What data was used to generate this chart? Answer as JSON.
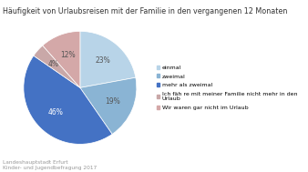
{
  "title": "Häufigkeit von Urlaubsreisen mit der Familie in den vergangenen 12 Monaten",
  "slices": [
    23,
    19,
    46,
    4,
    12
  ],
  "colors": [
    "#b8d4e8",
    "#8ab4d4",
    "#4472c4",
    "#c9a8a8",
    "#d4a8a8"
  ],
  "slice_labels": [
    "23%",
    "19%",
    "46%",
    "4%",
    "12%"
  ],
  "legend_labels": [
    "einmal",
    "zweimal",
    "mehr als zweimal",
    "Ich fäh re mit meiner Familie nicht mehr in den\nUrlaub",
    "Wir waren gar nicht im Urlaub"
  ],
  "label_colors": [
    "#555555",
    "#555555",
    "#ffffff",
    "#555555",
    "#555555"
  ],
  "source_text": "Landeshauptstadt Erfurt\nKinder- und Jugendbefragung 2017",
  "background_color": "#ffffff",
  "title_fontsize": 5.8,
  "legend_fontsize": 4.5,
  "label_fontsize": 5.5,
  "source_fontsize": 4.2
}
